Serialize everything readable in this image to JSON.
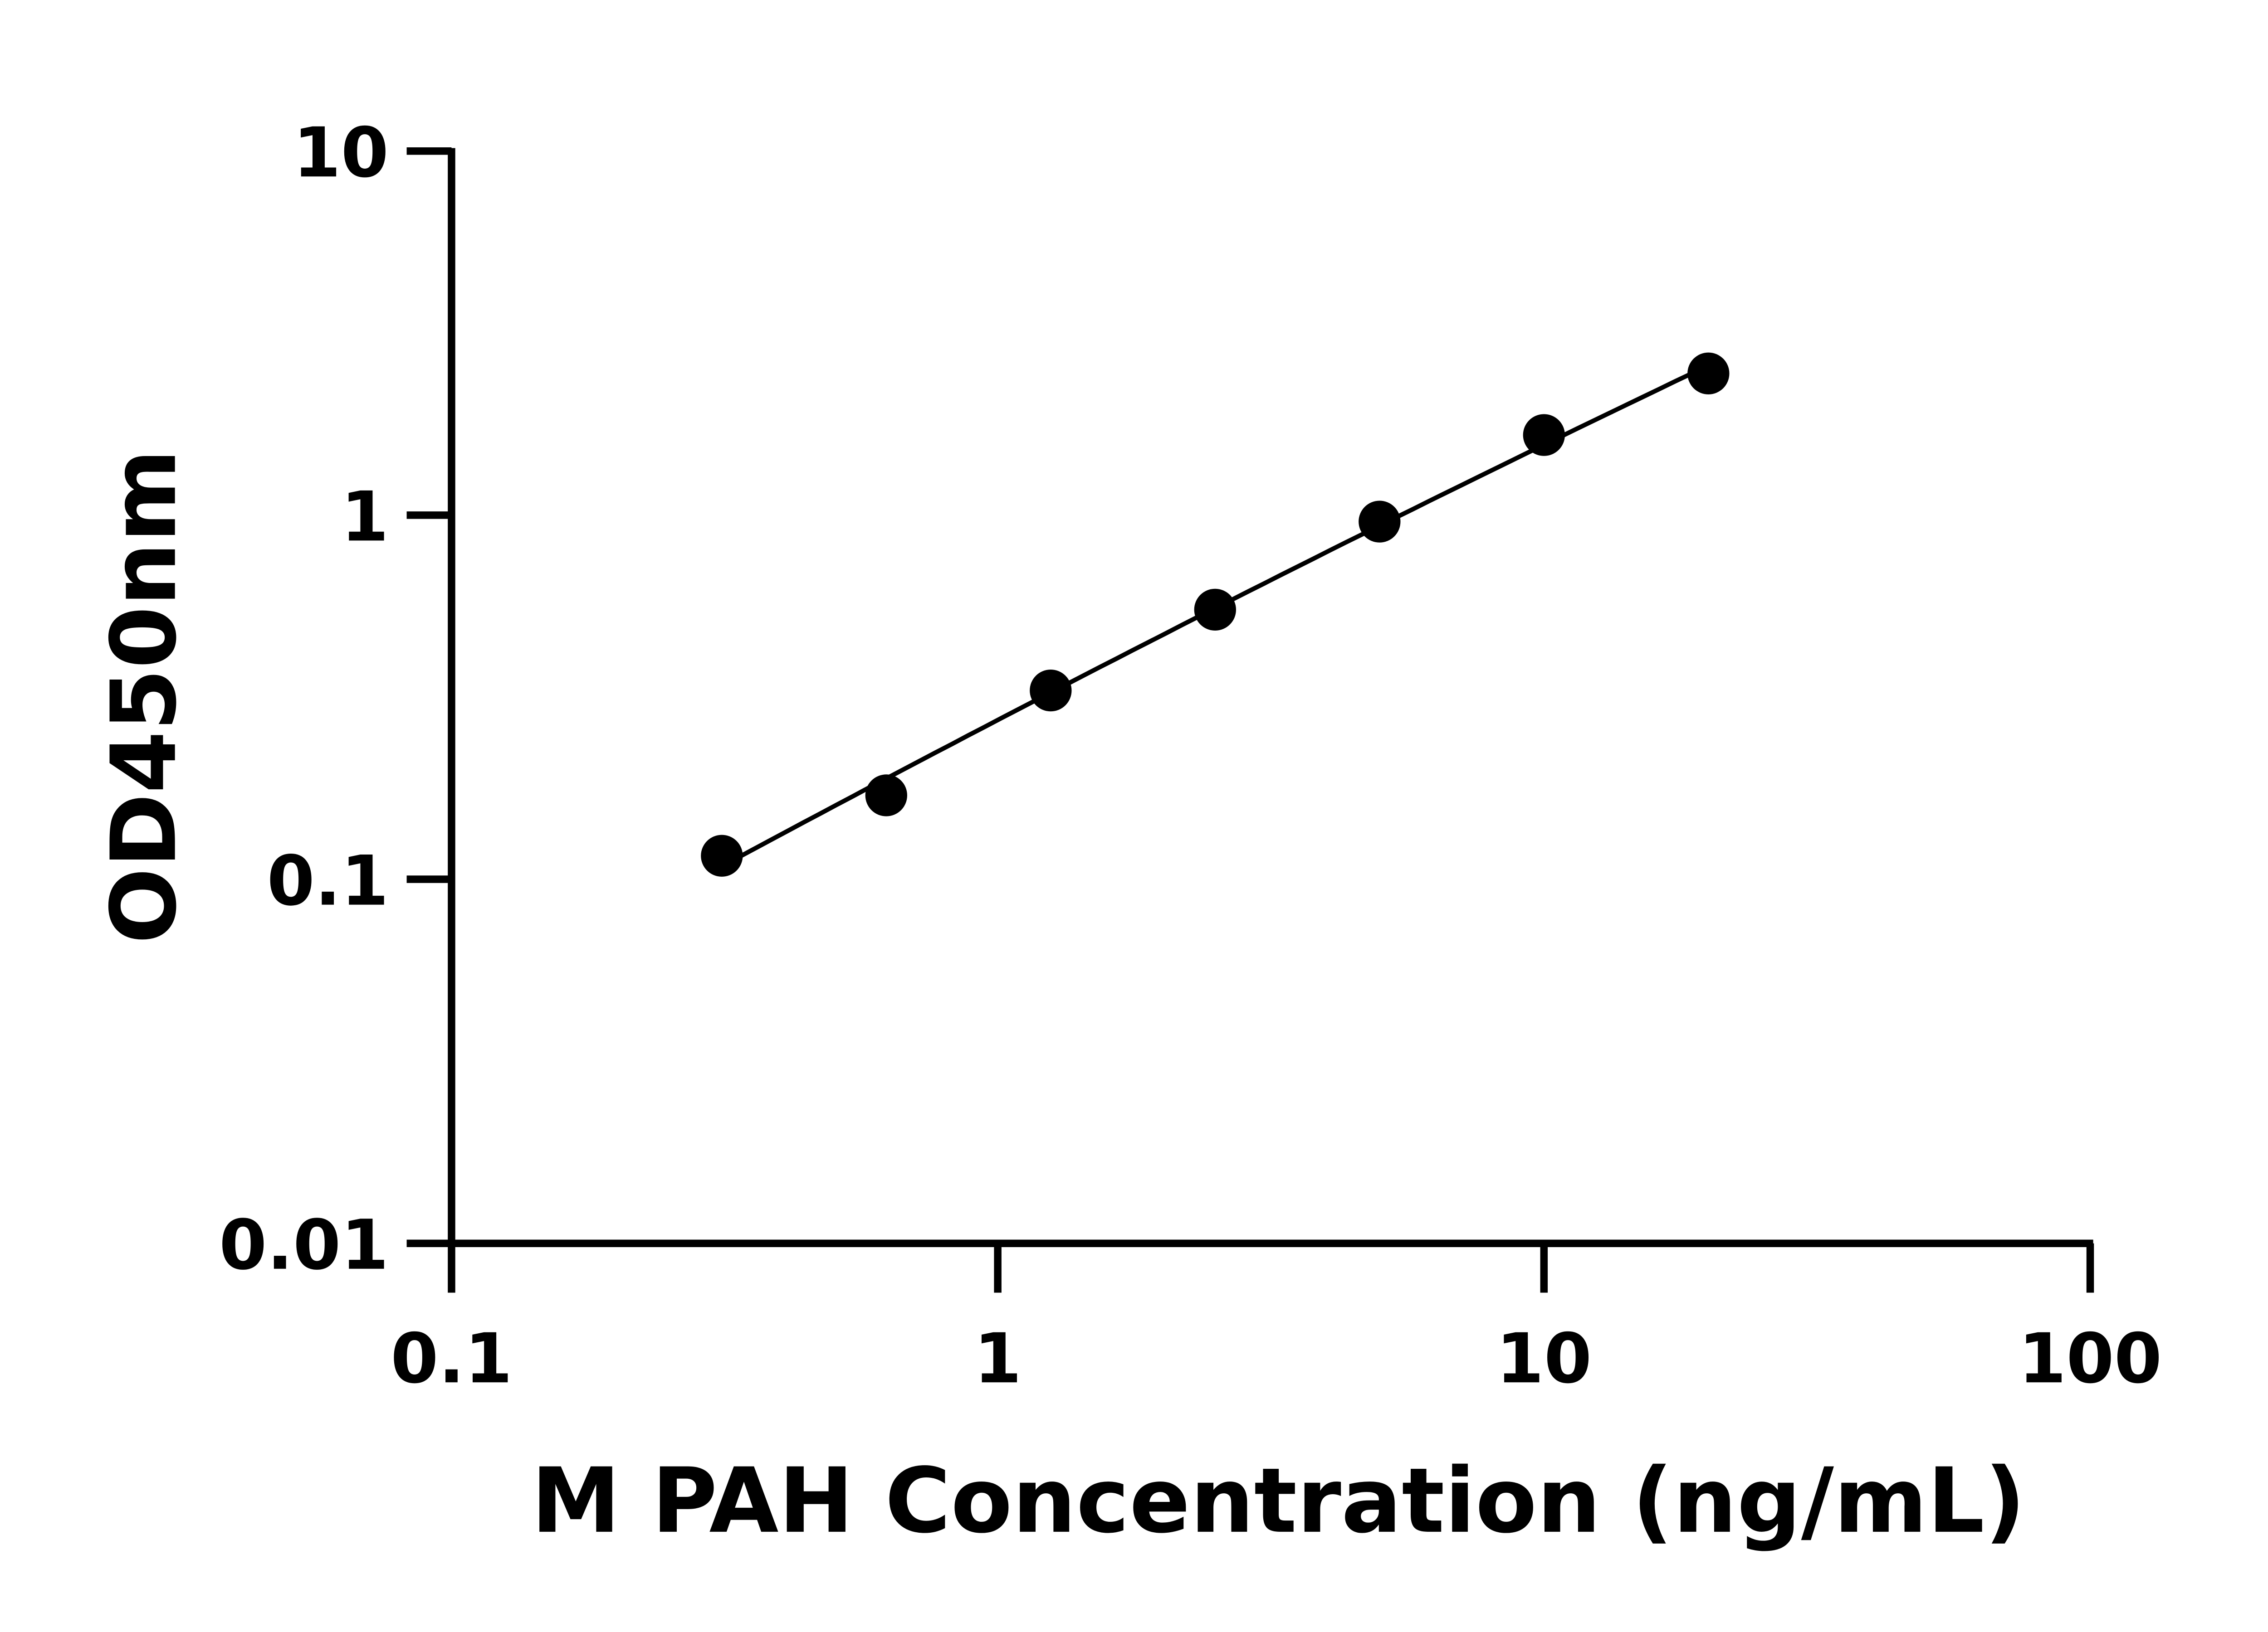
{
  "chart_data": {
    "type": "scatter",
    "title": "",
    "xlabel": "M PAH Concentration (ng/mL)",
    "ylabel": "OD450nm",
    "xscale": "log",
    "yscale": "log",
    "xlim": [
      0.1,
      100
    ],
    "ylim": [
      0.01,
      10
    ],
    "xticks": [
      "0.1",
      "1",
      "10",
      "100"
    ],
    "yticks": [
      "0.01",
      "0.1",
      "1",
      "10"
    ],
    "grid": false,
    "marker_color": "#000000",
    "line_color": "#000000",
    "fit_curve": true,
    "x": [
      0.3125,
      0.625,
      1.25,
      2.5,
      5,
      10,
      20
    ],
    "y": [
      0.116,
      0.17,
      0.33,
      0.55,
      0.96,
      1.66,
      2.45
    ]
  }
}
